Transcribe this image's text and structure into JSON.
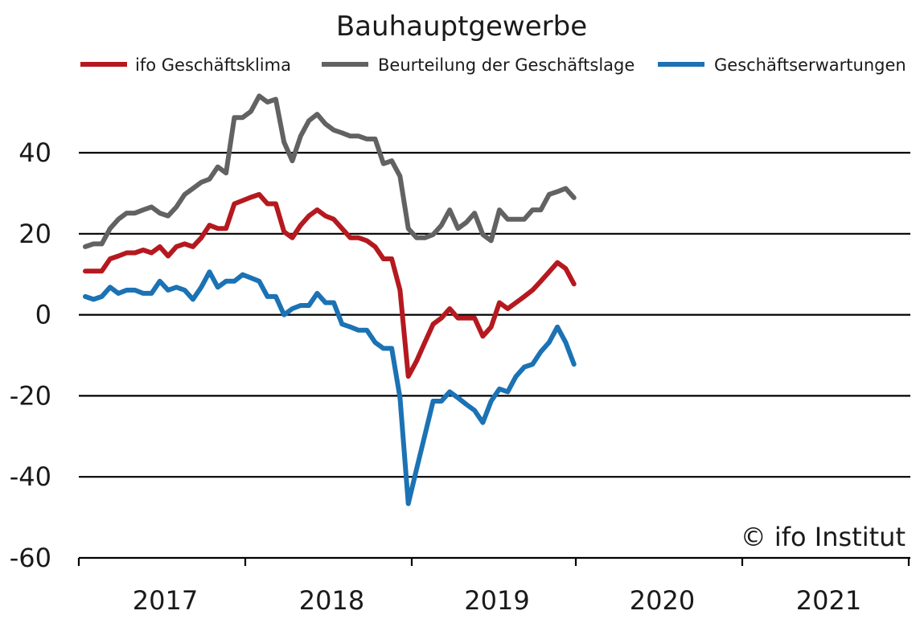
{
  "chart_data": {
    "type": "line",
    "title": "Bauhauptgewerbe",
    "credit": "© ifo Institut",
    "xlabel": "",
    "ylabel": "",
    "ylim": [
      -60,
      60
    ],
    "yticks": [
      40,
      20,
      0,
      -20,
      -40,
      -60
    ],
    "grid": true,
    "legend_position": "top",
    "x_start": "2016-07",
    "x_end": "2021-08",
    "year_labels": [
      "2017",
      "2018",
      "2019",
      "2020",
      "2021"
    ],
    "series": [
      {
        "name": "ifo Geschäftsklima",
        "color": "#b5191f",
        "values": [
          10.8,
          10.8,
          10.8,
          13.8,
          14.5,
          15.3,
          15.3,
          16.0,
          15.3,
          16.8,
          14.5,
          16.8,
          17.5,
          16.8,
          19.0,
          22.1,
          21.3,
          21.3,
          27.4,
          28.2,
          29.0,
          29.7,
          27.4,
          27.4,
          20.5,
          19.0,
          22.1,
          24.4,
          25.9,
          24.4,
          23.6,
          21.3,
          19.0,
          19.0,
          18.3,
          16.8,
          13.8,
          13.8,
          6.1,
          -15.2,
          -11.4,
          -6.8,
          -2.3,
          -0.8,
          1.5,
          -0.8,
          -0.8,
          -0.8,
          -5.3,
          -3.0,
          3.0,
          1.5,
          3.0,
          4.5,
          6.1,
          8.3,
          10.6,
          12.9,
          11.4,
          7.6
        ]
      },
      {
        "name": "Beurteilung der Geschäftslage",
        "color": "#626262",
        "values": [
          16.8,
          17.5,
          17.5,
          21.3,
          23.6,
          25.1,
          25.1,
          25.9,
          26.6,
          25.1,
          24.4,
          26.6,
          29.7,
          31.2,
          32.7,
          33.5,
          36.5,
          35.0,
          48.7,
          48.7,
          50.2,
          54.0,
          52.5,
          53.2,
          42.6,
          38.0,
          44.1,
          47.9,
          49.5,
          47.1,
          45.6,
          44.9,
          44.1,
          44.1,
          43.4,
          43.4,
          37.3,
          38.0,
          34.2,
          21.3,
          19.0,
          19.0,
          19.8,
          22.1,
          25.9,
          21.3,
          22.8,
          25.1,
          19.8,
          18.3,
          25.9,
          23.6,
          23.6,
          23.6,
          25.9,
          25.9,
          29.7,
          30.4,
          31.2,
          28.9
        ]
      },
      {
        "name": "Geschäftserwartungen",
        "color": "#1b72b4",
        "values": [
          4.5,
          3.8,
          4.5,
          6.8,
          5.3,
          6.1,
          6.1,
          5.3,
          5.3,
          8.3,
          6.1,
          6.8,
          6.1,
          3.8,
          6.8,
          10.6,
          6.8,
          8.3,
          8.3,
          9.9,
          9.1,
          8.3,
          4.5,
          4.5,
          0.0,
          1.5,
          2.3,
          2.3,
          5.3,
          3.0,
          3.0,
          -2.3,
          -3.0,
          -3.8,
          -3.8,
          -6.8,
          -8.3,
          -8.3,
          -20.5,
          -46.6,
          -38.1,
          -29.7,
          -21.3,
          -21.3,
          -19.0,
          -20.5,
          -22.1,
          -23.6,
          -26.6,
          -21.3,
          -18.3,
          -19.0,
          -15.2,
          -12.9,
          -12.2,
          -9.1,
          -6.8,
          -3.0,
          -6.8,
          -12.2
        ]
      }
    ]
  }
}
